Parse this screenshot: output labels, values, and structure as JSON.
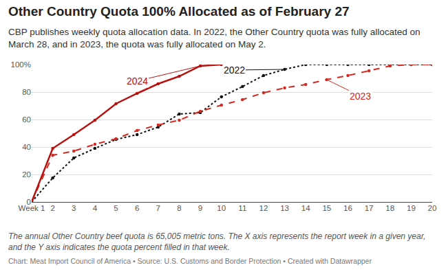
{
  "chart_data": {
    "type": "line",
    "title": "Other Country Quota 100% Allocated as of February 27",
    "subtitle": "CBP publishes weekly quota allocation data. In 2022, the Other Country quota was fully allocated on March 28, and in 2023, the quota was fully allocated on May 2.",
    "note": "The annual Other Country beef quota is 65,005 metric tons. The X axis represents the report week in a given year, and the Y axis indicates the quota percent filled in that week.",
    "credit": "Chart: Meat Import Council of America • Source: U.S. Customs and Border Protection • Created with Datawrapper",
    "x": [
      1,
      2,
      3,
      4,
      5,
      6,
      7,
      8,
      9,
      10,
      11,
      12,
      13,
      14,
      15,
      16,
      17,
      18,
      19,
      20
    ],
    "series": [
      {
        "name": "2022",
        "color": "#111111",
        "line_style": "dotted",
        "marker": "circle",
        "values": [
          0,
          17.5,
          32,
          39,
          45.5,
          49,
          54.5,
          64,
          65,
          76.5,
          84,
          92,
          96.5,
          100,
          100,
          100,
          100,
          100,
          100,
          100
        ]
      },
      {
        "name": "2023",
        "color": "#d42a22",
        "line_style": "dashed",
        "marker": "circle",
        "values": [
          0,
          34,
          37,
          42,
          46,
          52,
          56,
          59.5,
          66,
          70.5,
          74.5,
          79.5,
          83,
          85.5,
          89,
          92,
          95.5,
          99,
          100,
          100
        ]
      },
      {
        "name": "2024",
        "color": "#b8120f",
        "line_style": "solid",
        "marker": "circle",
        "values": [
          0,
          39,
          49,
          59.5,
          71.5,
          79,
          86,
          91.5,
          99,
          100,
          null,
          null,
          null,
          null,
          null,
          null,
          null,
          null,
          null,
          null
        ]
      }
    ],
    "xlim": [
      1,
      20
    ],
    "xticks": [
      {
        "value": 1,
        "label": "Week 1"
      },
      2,
      3,
      4,
      5,
      6,
      7,
      8,
      9,
      10,
      11,
      12,
      13,
      14,
      15,
      16,
      17,
      18,
      19,
      20
    ],
    "ylim": [
      0,
      100
    ],
    "yticks": [
      0,
      20,
      40,
      60,
      80,
      {
        "value": 100,
        "label": "100%"
      }
    ],
    "grid": true
  }
}
